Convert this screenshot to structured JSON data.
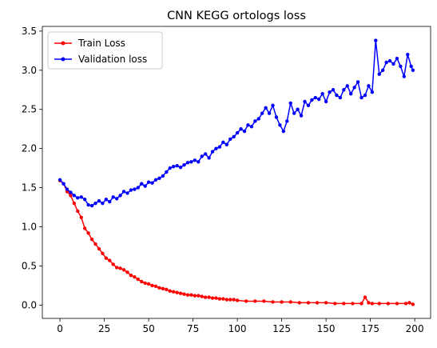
{
  "chart_data": {
    "type": "line",
    "title": "CNN KEGG ortologs loss",
    "xlabel": "",
    "ylabel": "",
    "xlim": [
      -9.95,
      208.95
    ],
    "ylim": [
      -0.17,
      3.56
    ],
    "xticks": [
      0,
      25,
      50,
      75,
      100,
      125,
      150,
      175,
      200
    ],
    "yticks": [
      0.0,
      0.5,
      1.0,
      1.5,
      2.0,
      2.5,
      3.0,
      3.5
    ],
    "xtick_labels": [
      "0",
      "25",
      "50",
      "75",
      "100",
      "125",
      "150",
      "175",
      "200"
    ],
    "ytick_labels": [
      "0.0",
      "0.5",
      "1.0",
      "1.5",
      "2.0",
      "2.5",
      "3.0",
      "3.5"
    ],
    "grid": false,
    "legend_position": "upper-left",
    "series": [
      {
        "name": "Train Loss",
        "color": "#ff0000",
        "marker": "dot",
        "x": [
          0,
          2,
          4,
          6,
          8,
          10,
          12,
          14,
          16,
          18,
          20,
          22,
          24,
          26,
          28,
          30,
          32,
          34,
          36,
          38,
          40,
          42,
          44,
          46,
          48,
          50,
          52,
          54,
          56,
          58,
          60,
          62,
          64,
          66,
          68,
          70,
          72,
          74,
          76,
          78,
          80,
          82,
          84,
          86,
          88,
          90,
          92,
          94,
          96,
          98,
          100,
          105,
          110,
          115,
          120,
          125,
          130,
          135,
          140,
          145,
          150,
          155,
          160,
          165,
          170,
          172,
          174,
          176,
          180,
          185,
          190,
          195,
          197,
          199
        ],
        "values": [
          1.59,
          1.55,
          1.45,
          1.4,
          1.3,
          1.2,
          1.12,
          0.98,
          0.92,
          0.84,
          0.78,
          0.72,
          0.66,
          0.6,
          0.57,
          0.52,
          0.48,
          0.47,
          0.45,
          0.42,
          0.38,
          0.36,
          0.33,
          0.3,
          0.28,
          0.27,
          0.25,
          0.24,
          0.22,
          0.21,
          0.2,
          0.18,
          0.17,
          0.16,
          0.15,
          0.14,
          0.13,
          0.13,
          0.12,
          0.12,
          0.11,
          0.1,
          0.1,
          0.09,
          0.09,
          0.08,
          0.08,
          0.07,
          0.07,
          0.07,
          0.06,
          0.05,
          0.05,
          0.05,
          0.04,
          0.04,
          0.04,
          0.03,
          0.03,
          0.03,
          0.03,
          0.02,
          0.02,
          0.02,
          0.02,
          0.1,
          0.03,
          0.02,
          0.02,
          0.02,
          0.02,
          0.02,
          0.03,
          0.01
        ]
      },
      {
        "name": "Validation loss",
        "color": "#0000ff",
        "marker": "dot",
        "x": [
          0,
          2,
          4,
          6,
          8,
          10,
          12,
          14,
          16,
          18,
          20,
          22,
          24,
          26,
          28,
          30,
          32,
          34,
          36,
          38,
          40,
          42,
          44,
          46,
          48,
          50,
          52,
          54,
          56,
          58,
          60,
          62,
          64,
          66,
          68,
          70,
          72,
          74,
          76,
          78,
          80,
          82,
          84,
          86,
          88,
          90,
          92,
          94,
          96,
          98,
          100,
          102,
          104,
          106,
          108,
          110,
          112,
          114,
          116,
          118,
          120,
          122,
          124,
          126,
          128,
          130,
          132,
          134,
          136,
          138,
          140,
          142,
          144,
          146,
          148,
          150,
          152,
          154,
          156,
          158,
          160,
          162,
          164,
          166,
          168,
          170,
          172,
          174,
          176,
          178,
          180,
          182,
          184,
          186,
          188,
          190,
          192,
          194,
          196,
          198,
          199
        ],
        "values": [
          1.6,
          1.55,
          1.48,
          1.44,
          1.4,
          1.37,
          1.38,
          1.35,
          1.28,
          1.27,
          1.3,
          1.33,
          1.3,
          1.35,
          1.32,
          1.38,
          1.36,
          1.4,
          1.45,
          1.43,
          1.47,
          1.48,
          1.5,
          1.55,
          1.52,
          1.57,
          1.56,
          1.6,
          1.62,
          1.65,
          1.7,
          1.75,
          1.77,
          1.78,
          1.76,
          1.79,
          1.82,
          1.83,
          1.85,
          1.83,
          1.9,
          1.93,
          1.88,
          1.96,
          2.0,
          2.02,
          2.08,
          2.05,
          2.12,
          2.15,
          2.2,
          2.25,
          2.22,
          2.3,
          2.28,
          2.35,
          2.38,
          2.45,
          2.52,
          2.45,
          2.55,
          2.4,
          2.3,
          2.22,
          2.35,
          2.58,
          2.45,
          2.5,
          2.42,
          2.6,
          2.55,
          2.62,
          2.65,
          2.63,
          2.7,
          2.6,
          2.72,
          2.75,
          2.68,
          2.65,
          2.75,
          2.8,
          2.7,
          2.78,
          2.85,
          2.65,
          2.68,
          2.8,
          2.72,
          3.38,
          2.95,
          3.0,
          3.1,
          3.12,
          3.08,
          3.15,
          3.05,
          2.92,
          3.2,
          3.05,
          3.0
        ]
      }
    ]
  }
}
